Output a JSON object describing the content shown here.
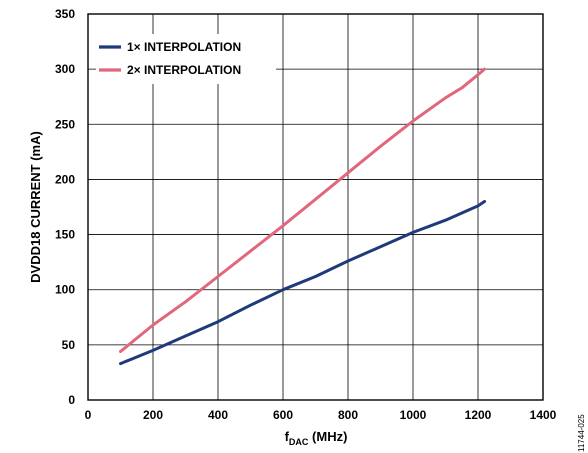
{
  "chart_data": {
    "type": "line",
    "xlabel": {
      "main": "f",
      "sub": "DAC",
      "rest": " (MHz)"
    },
    "ylabel": "DVDD18 CURRENT (mA)",
    "xlim": [
      0,
      1400
    ],
    "ylim": [
      0,
      350
    ],
    "xticks": [
      0,
      200,
      400,
      600,
      800,
      1000,
      1200,
      1400
    ],
    "yticks": [
      0,
      50,
      100,
      150,
      200,
      250,
      300,
      350
    ],
    "grid": true,
    "legend_position": "top-left",
    "series": [
      {
        "name": "1× INTERPOLATION",
        "color": "#1f3a7a",
        "x": [
          100,
          200,
          300,
          400,
          500,
          600,
          700,
          800,
          900,
          1000,
          1100,
          1200,
          1220
        ],
        "y": [
          33,
          45,
          58,
          71,
          86,
          100,
          112,
          126,
          139,
          152,
          163,
          176,
          180
        ]
      },
      {
        "name": "2× INTERPOLATION",
        "color": "#e0677e",
        "x": [
          100,
          200,
          300,
          400,
          500,
          600,
          700,
          800,
          900,
          1000,
          1100,
          1150,
          1200,
          1220
        ],
        "y": [
          44,
          68,
          89,
          112,
          135,
          158,
          182,
          206,
          230,
          253,
          274,
          283,
          295,
          300
        ]
      }
    ]
  },
  "figure_id": "11744-025"
}
